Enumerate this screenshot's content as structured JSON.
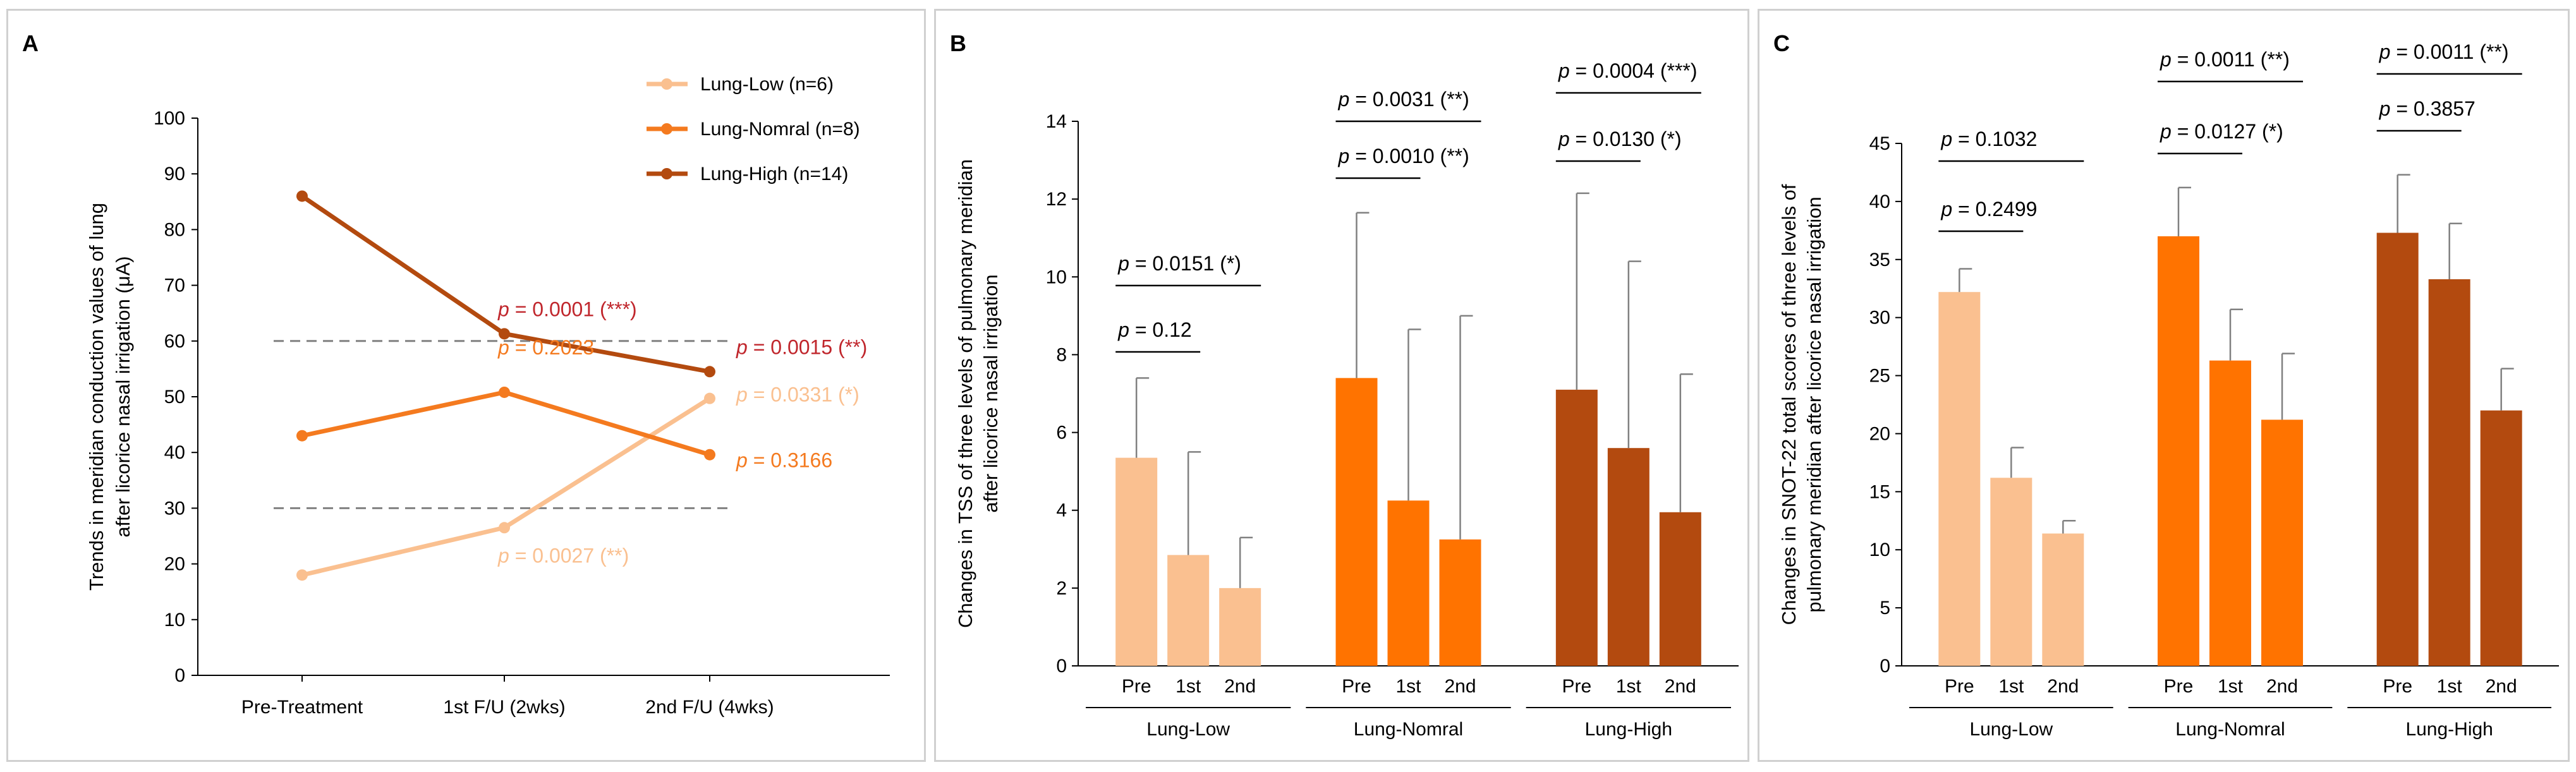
{
  "chart_data": [
    {
      "panel": "A",
      "type": "line",
      "ylabel": "Trends in meridian conduction values of lung after licorice nasal irrigation (μA)",
      "ylabel_lines": [
        "Trends in meridian conduction values of lung",
        "after licorice nasal irrigation (μA)"
      ],
      "categories": [
        "Pre-Treatment",
        "1st F/U (2wks)",
        "2nd F/U (4wks)"
      ],
      "ylim": [
        0,
        100
      ],
      "yticks": [
        0,
        10,
        20,
        30,
        40,
        50,
        60,
        70,
        80,
        90,
        100
      ],
      "reference_lines": [
        30,
        60
      ],
      "legend_position": "top-right",
      "series": [
        {
          "name": "Lung-Low (n=6)",
          "color": "#FAC090",
          "values": [
            18,
            26.5,
            49.7
          ]
        },
        {
          "name": "Lung-Nomral (n=8)",
          "color": "#F47A1F",
          "values": [
            43,
            50.8,
            39.6
          ]
        },
        {
          "name": "Lung-High (n=14)",
          "color": "#B34A0F",
          "values": [
            86,
            61.3,
            54.5
          ]
        }
      ],
      "annotations": [
        {
          "p": "p",
          "text": " = 0.0001 (***)",
          "color": "#C0262C",
          "series": 2,
          "point": 1
        },
        {
          "p": "p",
          "text": " = 0.0015 (**)",
          "color": "#C0262C",
          "series": 2,
          "point": 2
        },
        {
          "p": "p",
          "text": " = 0.2023",
          "color": "#F47A1F",
          "series": 1,
          "point": 1
        },
        {
          "p": "p",
          "text": " = 0.3166",
          "color": "#F47A1F",
          "series": 1,
          "point": 2
        },
        {
          "p": "p",
          "text": " = 0.0331 (*)",
          "color": "#FAC090",
          "series": 0,
          "point": 2
        },
        {
          "p": "p",
          "text": " = 0.0027 (**)",
          "color": "#FAC090",
          "series": 0,
          "point": 1
        }
      ]
    },
    {
      "panel": "B",
      "type": "bar",
      "ylabel": "Changes in TSS of three levels of pulmonary meridian after licorice nasal irrigation",
      "ylabel_lines": [
        "Changes in TSS of three levels of pulmonary meridian",
        "after licorice nasal irrigation"
      ],
      "ylim": [
        0,
        14
      ],
      "yticks": [
        0,
        2,
        4,
        6,
        8,
        10,
        12,
        14
      ],
      "bar_labels": [
        "Pre",
        "1st",
        "2nd"
      ],
      "groups": [
        {
          "name": "Lung-Low",
          "color": "#FAC090",
          "values": [
            5.35,
            2.85,
            2.0
          ],
          "errors": [
            2.05,
            2.65,
            1.3
          ],
          "comparisons": [
            {
              "from": 0,
              "to": 1,
              "label": " = 0.12"
            },
            {
              "from": 0,
              "to": 2,
              "label": " = 0.0151 (*)"
            }
          ]
        },
        {
          "name": "Lung-Nomral",
          "color": "#FF7300",
          "values": [
            7.4,
            4.25,
            3.25
          ],
          "errors": [
            4.25,
            4.4,
            5.75
          ],
          "comparisons": [
            {
              "from": 0,
              "to": 1,
              "label": " = 0.0010 (**)"
            },
            {
              "from": 0,
              "to": 2,
              "label": " = 0.0031 (**)"
            }
          ]
        },
        {
          "name": "Lung-High",
          "color": "#B34A0F",
          "values": [
            7.1,
            5.6,
            3.95
          ],
          "errors": [
            5.05,
            4.8,
            3.55
          ],
          "comparisons": [
            {
              "from": 0,
              "to": 1,
              "label": " = 0.0130 (*)"
            },
            {
              "from": 0,
              "to": 2,
              "label": " = 0.0004 (***)"
            }
          ]
        }
      ]
    },
    {
      "panel": "C",
      "type": "bar",
      "ylabel": "Changes in SNOT-22 total scores of three levels of pulmonary meridian after licorice nasal irrigation",
      "ylabel_lines": [
        "Changes in SNOT-22 total scores of three levels of",
        "pulmonary meridian after licorice nasal irrigation"
      ],
      "ylim": [
        0,
        45
      ],
      "yticks": [
        0,
        5,
        10,
        15,
        20,
        25,
        30,
        35,
        40,
        45
      ],
      "bar_labels": [
        "Pre",
        "1st",
        "2nd"
      ],
      "groups": [
        {
          "name": "Lung-Low",
          "color": "#FAC090",
          "values": [
            32.2,
            16.2,
            11.4
          ],
          "errors": [
            2.0,
            2.6,
            1.1
          ],
          "comparisons": [
            {
              "from": 0,
              "to": 1,
              "label": " = 0.2499"
            },
            {
              "from": 0,
              "to": 2,
              "label": " = 0.1032"
            }
          ]
        },
        {
          "name": "Lung-Nomral",
          "color": "#FF7300",
          "values": [
            37.0,
            26.3,
            21.2
          ],
          "errors": [
            4.2,
            4.4,
            5.7
          ],
          "comparisons": [
            {
              "from": 0,
              "to": 1,
              "label": " = 0.0127 (*)"
            },
            {
              "from": 0,
              "to": 2,
              "label": " = 0.0011 (**)"
            }
          ]
        },
        {
          "name": "Lung-High",
          "color": "#B34A0F",
          "values": [
            37.3,
            33.3,
            22.0
          ],
          "errors": [
            5.0,
            4.8,
            3.6
          ],
          "comparisons": [
            {
              "from": 0,
              "to": 1,
              "label": " = 0.3857"
            },
            {
              "from": 0,
              "to": 2,
              "label": " = 0.0011 (**)"
            }
          ]
        }
      ]
    }
  ],
  "panels": {
    "a_letter": "A",
    "b_letter": "B",
    "c_letter": "C"
  },
  "colors": {
    "error_bar": "#808080",
    "reference_line": "#808080",
    "axis": "#000000"
  }
}
